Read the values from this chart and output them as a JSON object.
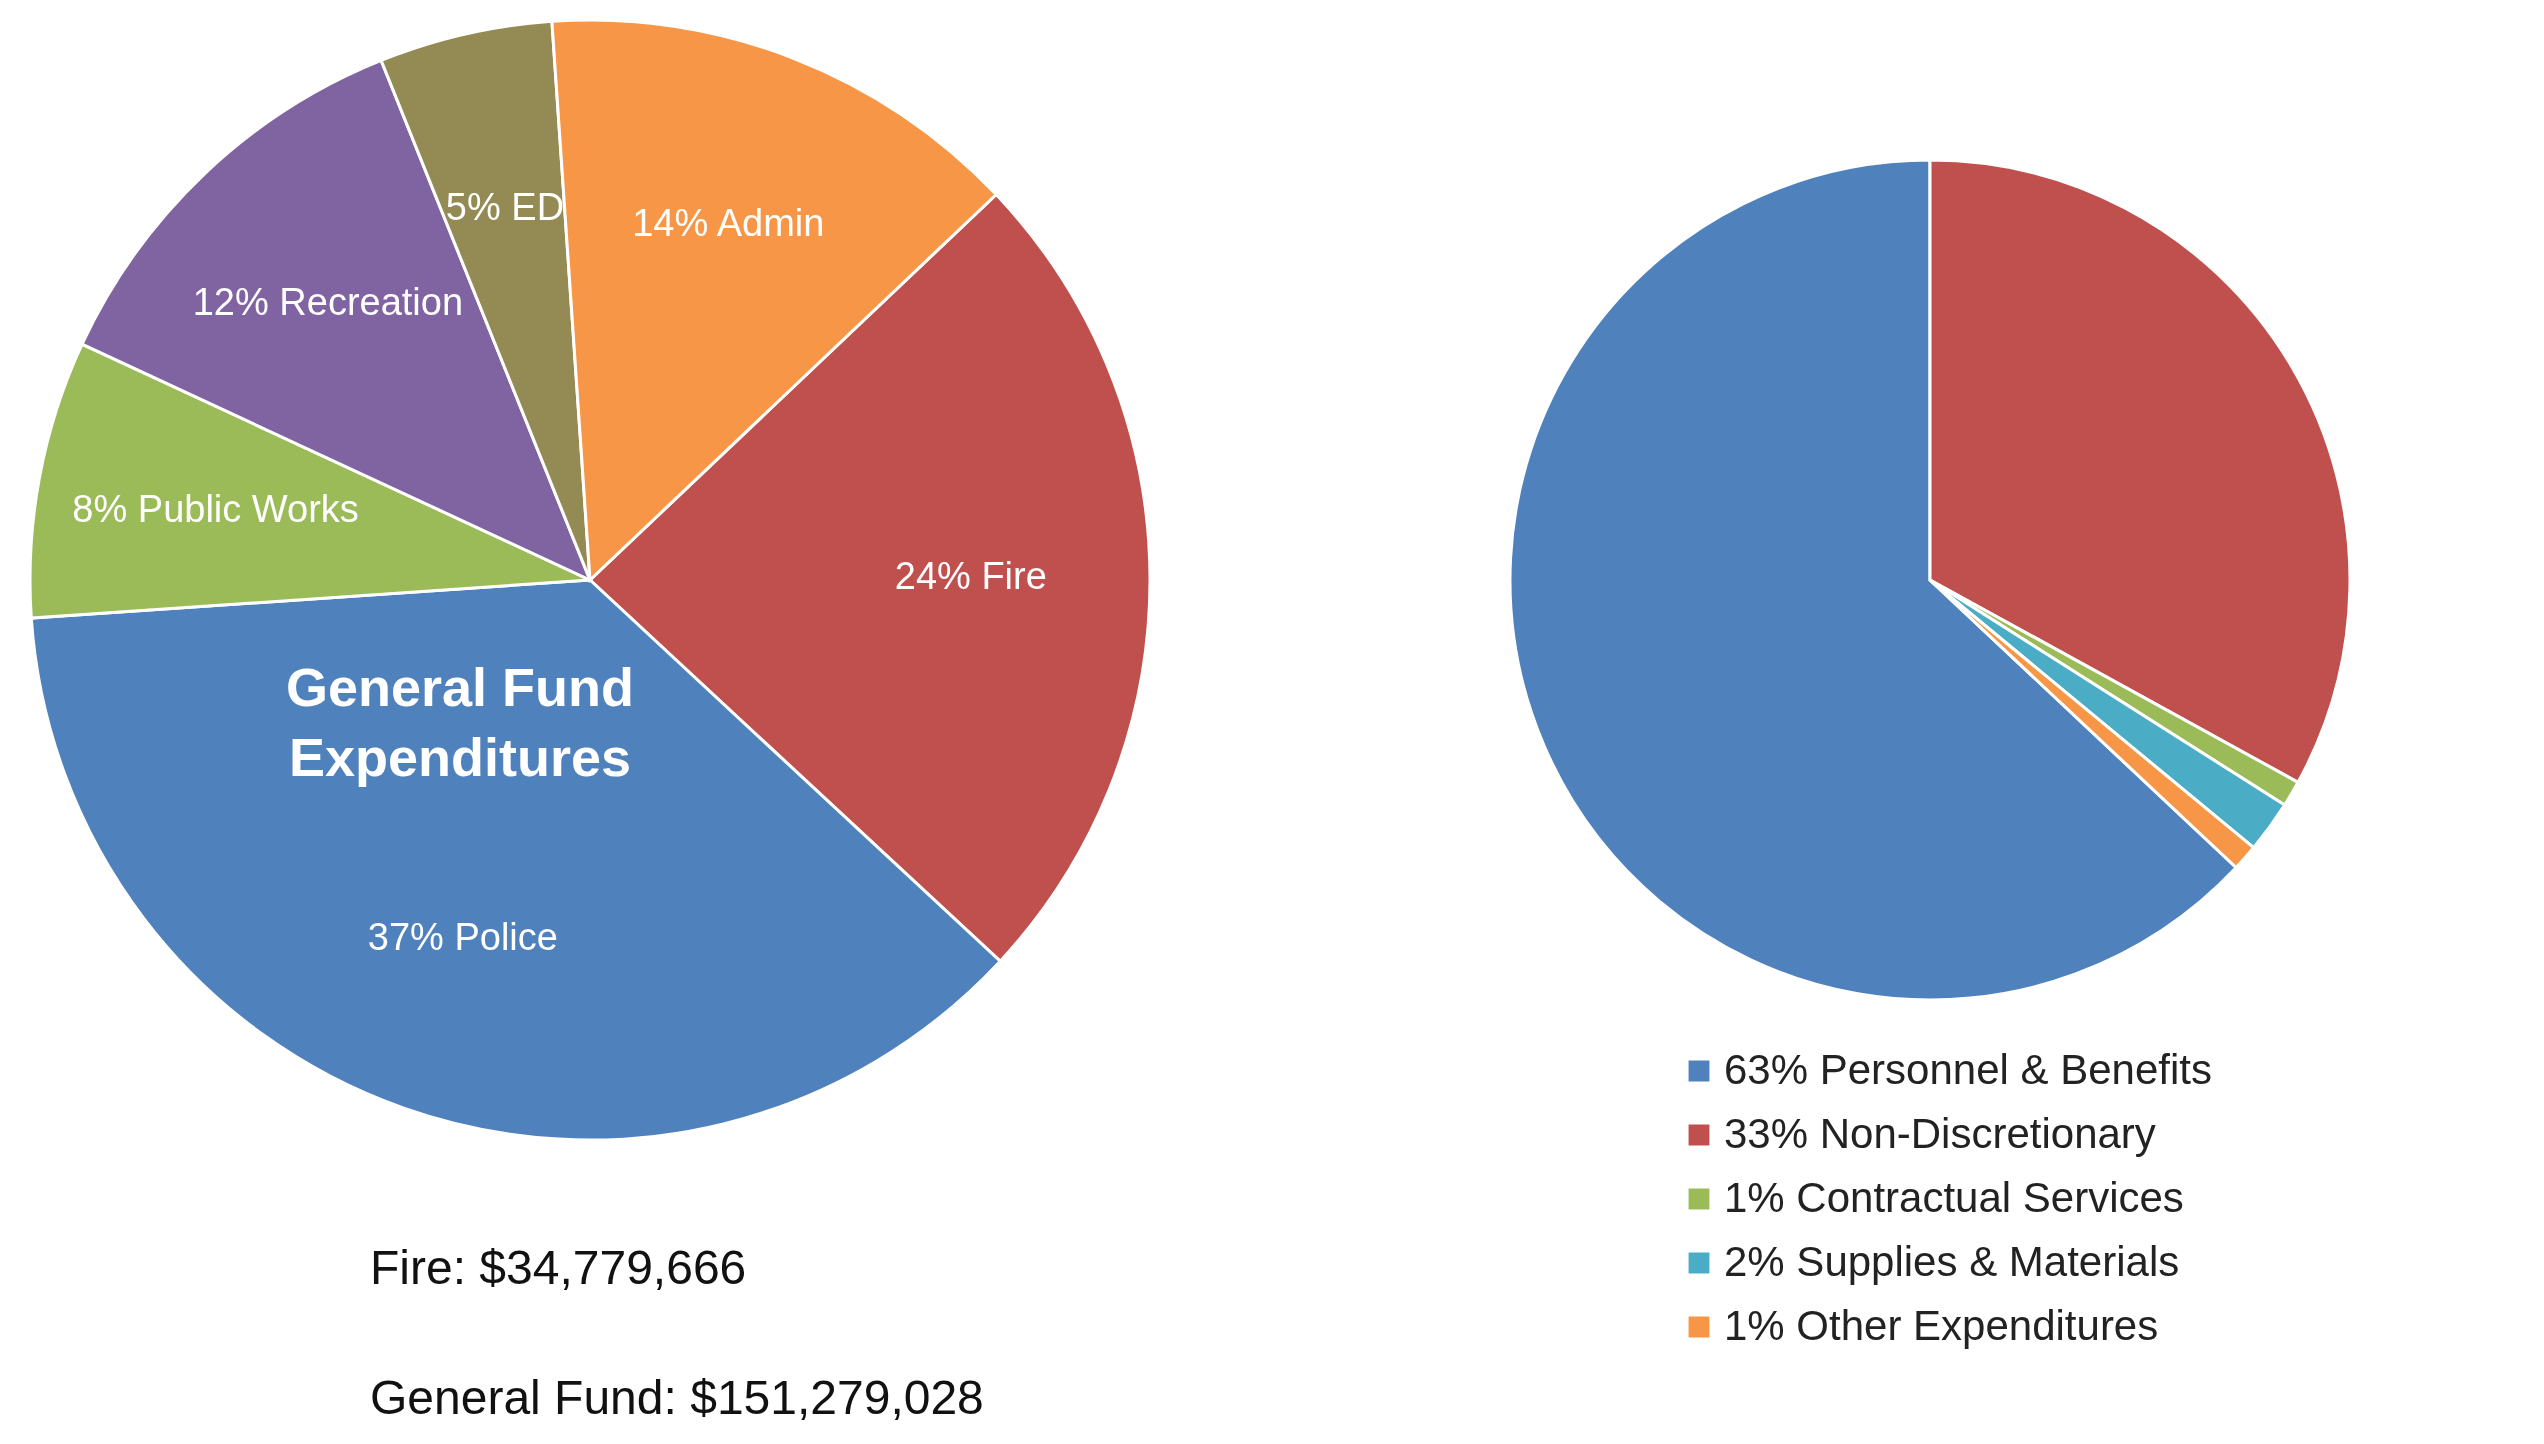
{
  "chart_data": [
    {
      "type": "pie",
      "title": "General Fund Expenditures",
      "categories": [
        "24% Fire",
        "37% Police",
        "8% Public Works",
        "12% Recreation",
        "5% ED",
        "14% Admin"
      ],
      "values": [
        24,
        37,
        8,
        12,
        5,
        14
      ],
      "colors": [
        "#c0504d",
        "#4f81bd",
        "#9bbb59",
        "#8064a2",
        "#948a54",
        "#f79646"
      ],
      "annotations": [
        "Fire: $34,779,666",
        "General Fund: $151,279,028"
      ]
    },
    {
      "type": "pie",
      "categories": [
        "63% Personnel & Benefits",
        "33% Non-Discretionary",
        "1% Contractual Services",
        "2% Supplies & Materials",
        "1% Other Expenditures"
      ],
      "values": [
        63,
        33,
        1,
        2,
        1
      ],
      "colors": [
        "#4f81bd",
        "#c0504d",
        "#9bbb59",
        "#4bacc6",
        "#f79646"
      ],
      "legend": "bottom right"
    }
  ]
}
